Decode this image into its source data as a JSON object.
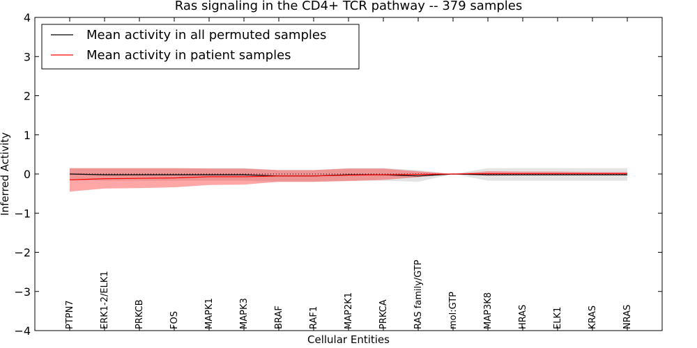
{
  "chart_data": {
    "type": "line",
    "title": "Ras signaling in the CD4+ TCR pathway -- 379 samples",
    "xlabel": "Cellular Entities",
    "ylabel": "Inferred Activity",
    "ylim": [
      -4,
      4
    ],
    "yticks": [
      -4,
      -3,
      -2,
      -1,
      0,
      1,
      2,
      3,
      4
    ],
    "ytick_labels": [
      "−4",
      "−3",
      "−2",
      "−1",
      "0",
      "1",
      "2",
      "3",
      "4"
    ],
    "categories": [
      "PTPN7",
      "ERK1-2/ELK1",
      "PRKCB",
      "FOS",
      "MAPK1",
      "MAPK3",
      "BRAF",
      "RAF1",
      "MAP2K1",
      "PRKCA",
      "RAS family/GTP",
      "mol:GTP",
      "MAP3K8",
      "HRAS",
      "ELK1",
      "KRAS",
      "NRAS"
    ],
    "reference_line": {
      "y": 0,
      "style": "dotted"
    },
    "legend": {
      "position": "top-left",
      "entries": [
        "Mean activity in all permuted samples",
        "Mean activity in patient samples"
      ]
    },
    "series": [
      {
        "name": "Mean activity in all permuted samples",
        "color": "#000000",
        "band_color": "#bbbbbb",
        "values": [
          0.0,
          -0.02,
          -0.02,
          -0.02,
          -0.02,
          -0.02,
          -0.05,
          -0.05,
          -0.02,
          -0.02,
          -0.05,
          0.0,
          -0.02,
          -0.02,
          -0.02,
          -0.02,
          -0.02
        ],
        "upper": [
          0.15,
          0.15,
          0.15,
          0.15,
          0.15,
          0.15,
          0.1,
          0.1,
          0.15,
          0.15,
          0.1,
          0.0,
          0.15,
          0.15,
          0.15,
          0.15,
          0.15
        ],
        "lower": [
          -0.15,
          -0.17,
          -0.17,
          -0.17,
          -0.17,
          -0.17,
          -0.2,
          -0.2,
          -0.17,
          -0.17,
          -0.2,
          0.0,
          -0.17,
          -0.17,
          -0.17,
          -0.17,
          -0.17
        ]
      },
      {
        "name": "Mean activity in patient samples",
        "color": "#ff0000",
        "band_color": "#ff0000",
        "values": [
          -0.15,
          -0.12,
          -0.11,
          -0.1,
          -0.07,
          -0.07,
          -0.05,
          -0.05,
          -0.03,
          -0.02,
          -0.01,
          0.0,
          0.01,
          0.01,
          0.01,
          0.01,
          0.01
        ],
        "upper": [
          0.15,
          0.15,
          0.15,
          0.15,
          0.14,
          0.14,
          0.1,
          0.1,
          0.14,
          0.14,
          0.07,
          0.0,
          0.07,
          0.06,
          0.06,
          0.05,
          0.05
        ],
        "lower": [
          -0.45,
          -0.37,
          -0.36,
          -0.34,
          -0.28,
          -0.27,
          -0.2,
          -0.2,
          -0.18,
          -0.15,
          -0.08,
          0.0,
          -0.04,
          -0.03,
          -0.03,
          -0.03,
          -0.03
        ]
      }
    ]
  }
}
